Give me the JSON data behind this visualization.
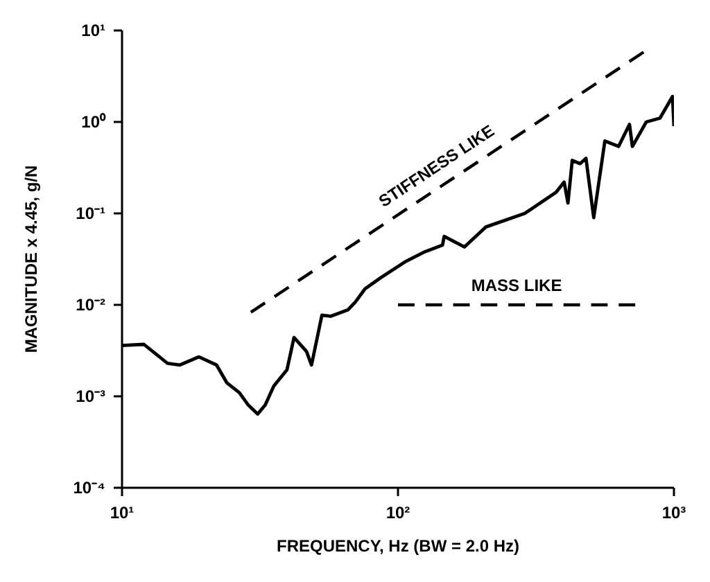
{
  "chart_data": {
    "type": "line",
    "xlabel": "FREQUENCY, Hz (BW = 2.0 Hz)",
    "ylabel": "MAGNITUDE x 4.45, g/N",
    "log": "xy",
    "xlim": [
      10,
      1000
    ],
    "ylim": [
      0.0001,
      10
    ],
    "xticks": [
      {
        "value": 10,
        "label": "10¹"
      },
      {
        "value": 100,
        "label": "10²"
      },
      {
        "value": 1000,
        "label": "10³"
      }
    ],
    "yticks": [
      {
        "value": 0.0001,
        "label": "10⁻⁴"
      },
      {
        "value": 0.001,
        "label": "10⁻³"
      },
      {
        "value": 0.01,
        "label": "10⁻²"
      },
      {
        "value": 0.1,
        "label": "10⁻¹"
      },
      {
        "value": 1,
        "label": "10⁰"
      },
      {
        "value": 10,
        "label": "10¹"
      }
    ],
    "series": [
      {
        "color": "#000000",
        "line_style": "solid",
        "x": [
          10,
          12,
          14.6,
          16.2,
          19,
          22,
          24,
          26.6,
          28.7,
          31,
          33,
          35.5,
          39.6,
          42,
          46.6,
          48.6,
          53,
          57,
          65.8,
          70,
          76,
          87,
          107,
          125,
          145,
          147,
          174,
          208,
          288,
          374,
          400,
          413,
          428,
          457,
          480,
          512,
          562,
          630,
          690,
          707,
          794,
          890,
          988,
          1000
        ],
        "values": [
          0.0036,
          0.0037,
          0.0023,
          0.0022,
          0.0027,
          0.0022,
          0.0014,
          0.0011,
          0.0008,
          0.00064,
          0.0008,
          0.0013,
          0.00195,
          0.0044,
          0.0031,
          0.0022,
          0.0077,
          0.0075,
          0.0088,
          0.0107,
          0.015,
          0.02,
          0.03,
          0.038,
          0.045,
          0.056,
          0.043,
          0.071,
          0.1,
          0.17,
          0.22,
          0.13,
          0.38,
          0.35,
          0.4,
          0.09,
          0.62,
          0.54,
          0.94,
          0.54,
          1.0,
          1.1,
          1.9,
          0.9
        ]
      },
      {
        "name": "STIFFNESS LIKE",
        "color": "#000000",
        "line_style": "dashed",
        "x": [
          29.3,
          776
        ],
        "values": [
          0.0083,
          5.8
        ]
      },
      {
        "name": "MASS LIKE",
        "color": "#000000",
        "line_style": "dashed",
        "x": [
          100,
          724
        ],
        "values": [
          0.01,
          0.01
        ]
      }
    ]
  }
}
